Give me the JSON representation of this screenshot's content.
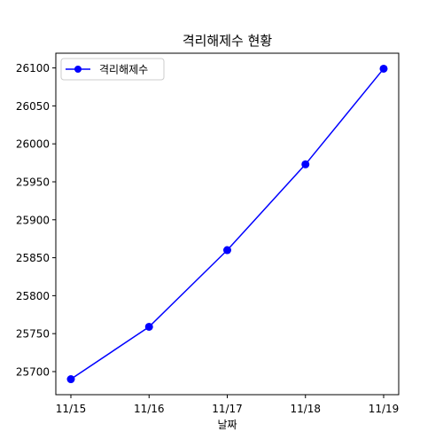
{
  "chart_data": {
    "type": "line",
    "title": "격리해제수 현황",
    "xlabel": "날짜",
    "ylabel": "",
    "categories": [
      "11/15",
      "11/16",
      "11/17",
      "11/18",
      "11/19"
    ],
    "series": [
      {
        "name": "격리해제수",
        "values": [
          25690,
          25759,
          25860,
          25973,
          26099
        ],
        "color": "#0000ff",
        "marker": "circle"
      }
    ],
    "yticks": [
      25700,
      25750,
      25800,
      25850,
      25900,
      25950,
      26000,
      26050,
      26100
    ],
    "ylim": [
      25669.6,
      26119.4
    ],
    "legend_position": "top-left",
    "grid": false
  }
}
